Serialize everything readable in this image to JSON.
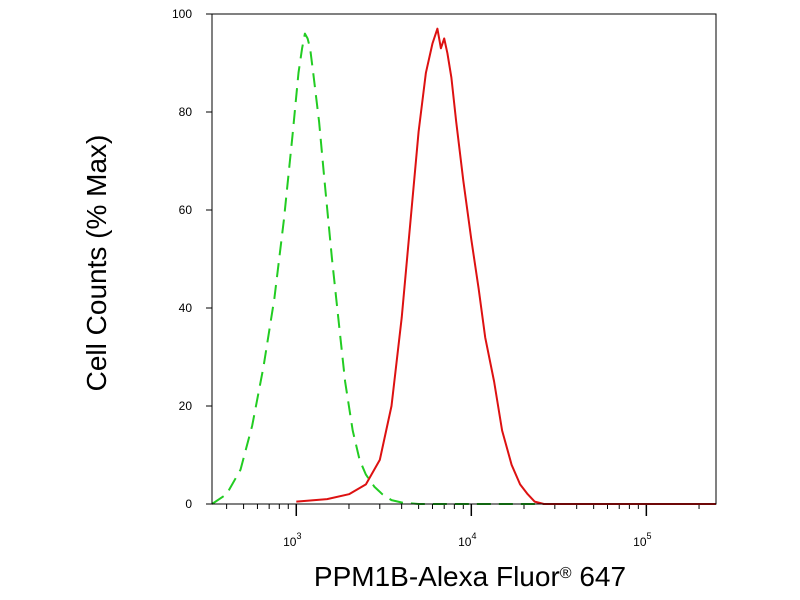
{
  "chart_data": {
    "type": "line",
    "xlabel_main": "PPM1B-Alexa Fluor",
    "xlabel_reg": "®",
    "xlabel_tail": " 647",
    "ylabel": "Cell Counts (% Max)",
    "x_scale": "log",
    "xlim": [
      330,
      250000
    ],
    "ylim": [
      0,
      100
    ],
    "y_ticks": [
      {
        "value": 0,
        "label": "0"
      },
      {
        "value": 20,
        "label": "20"
      },
      {
        "value": 40,
        "label": "40"
      },
      {
        "value": 60,
        "label": "60"
      },
      {
        "value": 80,
        "label": "80"
      },
      {
        "value": 100,
        "label": "100"
      }
    ],
    "x_major_ticks": [
      {
        "value": 1000,
        "base": "10",
        "exp": "3"
      },
      {
        "value": 10000,
        "base": "10",
        "exp": "4"
      },
      {
        "value": 100000,
        "base": "10",
        "exp": "5"
      }
    ],
    "grid": false,
    "legend": "none",
    "series": [
      {
        "color": "#22cc22",
        "style": "dashed",
        "x": [
          330,
          400,
          480,
          560,
          650,
          750,
          850,
          950,
          1030,
          1080,
          1120,
          1160,
          1200,
          1250,
          1350,
          1450,
          1600,
          1750,
          1900,
          2100,
          2300,
          2500,
          2800,
          3100,
          3500,
          4000,
          5000,
          8000,
          20000,
          250000
        ],
        "y": [
          0,
          2,
          7,
          16,
          28,
          42,
          58,
          75,
          88,
          93,
          96,
          95,
          93,
          88,
          78,
          66,
          50,
          37,
          25,
          15,
          9,
          6,
          3.5,
          2,
          0.8,
          0.3,
          0,
          0,
          0,
          0
        ]
      },
      {
        "color": "#dd1111",
        "style": "solid",
        "x": [
          1000,
          1500,
          2000,
          2500,
          3000,
          3500,
          4000,
          4500,
          5000,
          5500,
          6000,
          6400,
          6700,
          7000,
          7300,
          7700,
          8200,
          9000,
          10000,
          11000,
          12000,
          13500,
          15000,
          17000,
          19000,
          21000,
          23000,
          26000,
          40000,
          250000
        ],
        "y": [
          0.5,
          1,
          2,
          4,
          9,
          20,
          38,
          58,
          76,
          88,
          94,
          97,
          93,
          95,
          92,
          87,
          78,
          66,
          54,
          44,
          34,
          25,
          15,
          8,
          4,
          2,
          0.5,
          0,
          0,
          0
        ]
      }
    ]
  }
}
